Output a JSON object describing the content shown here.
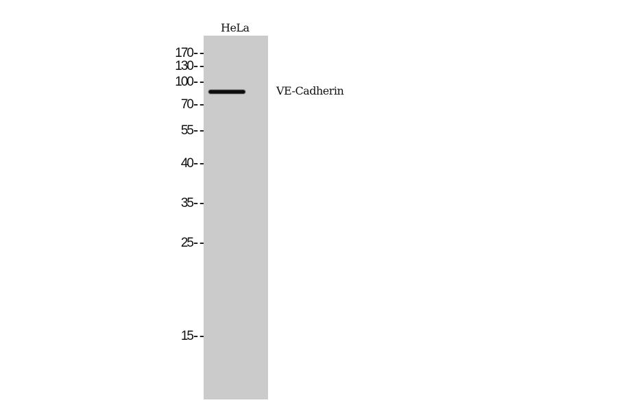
{
  "lane_labels": [
    "HeLa"
  ],
  "protein_label": "VE-Cadherin",
  "markers": [
    "170",
    "130",
    "100",
    "70",
    "55",
    "40",
    "35",
    "25",
    "15"
  ],
  "band": {
    "lane": "HeLa",
    "approx_kda": 85
  }
}
